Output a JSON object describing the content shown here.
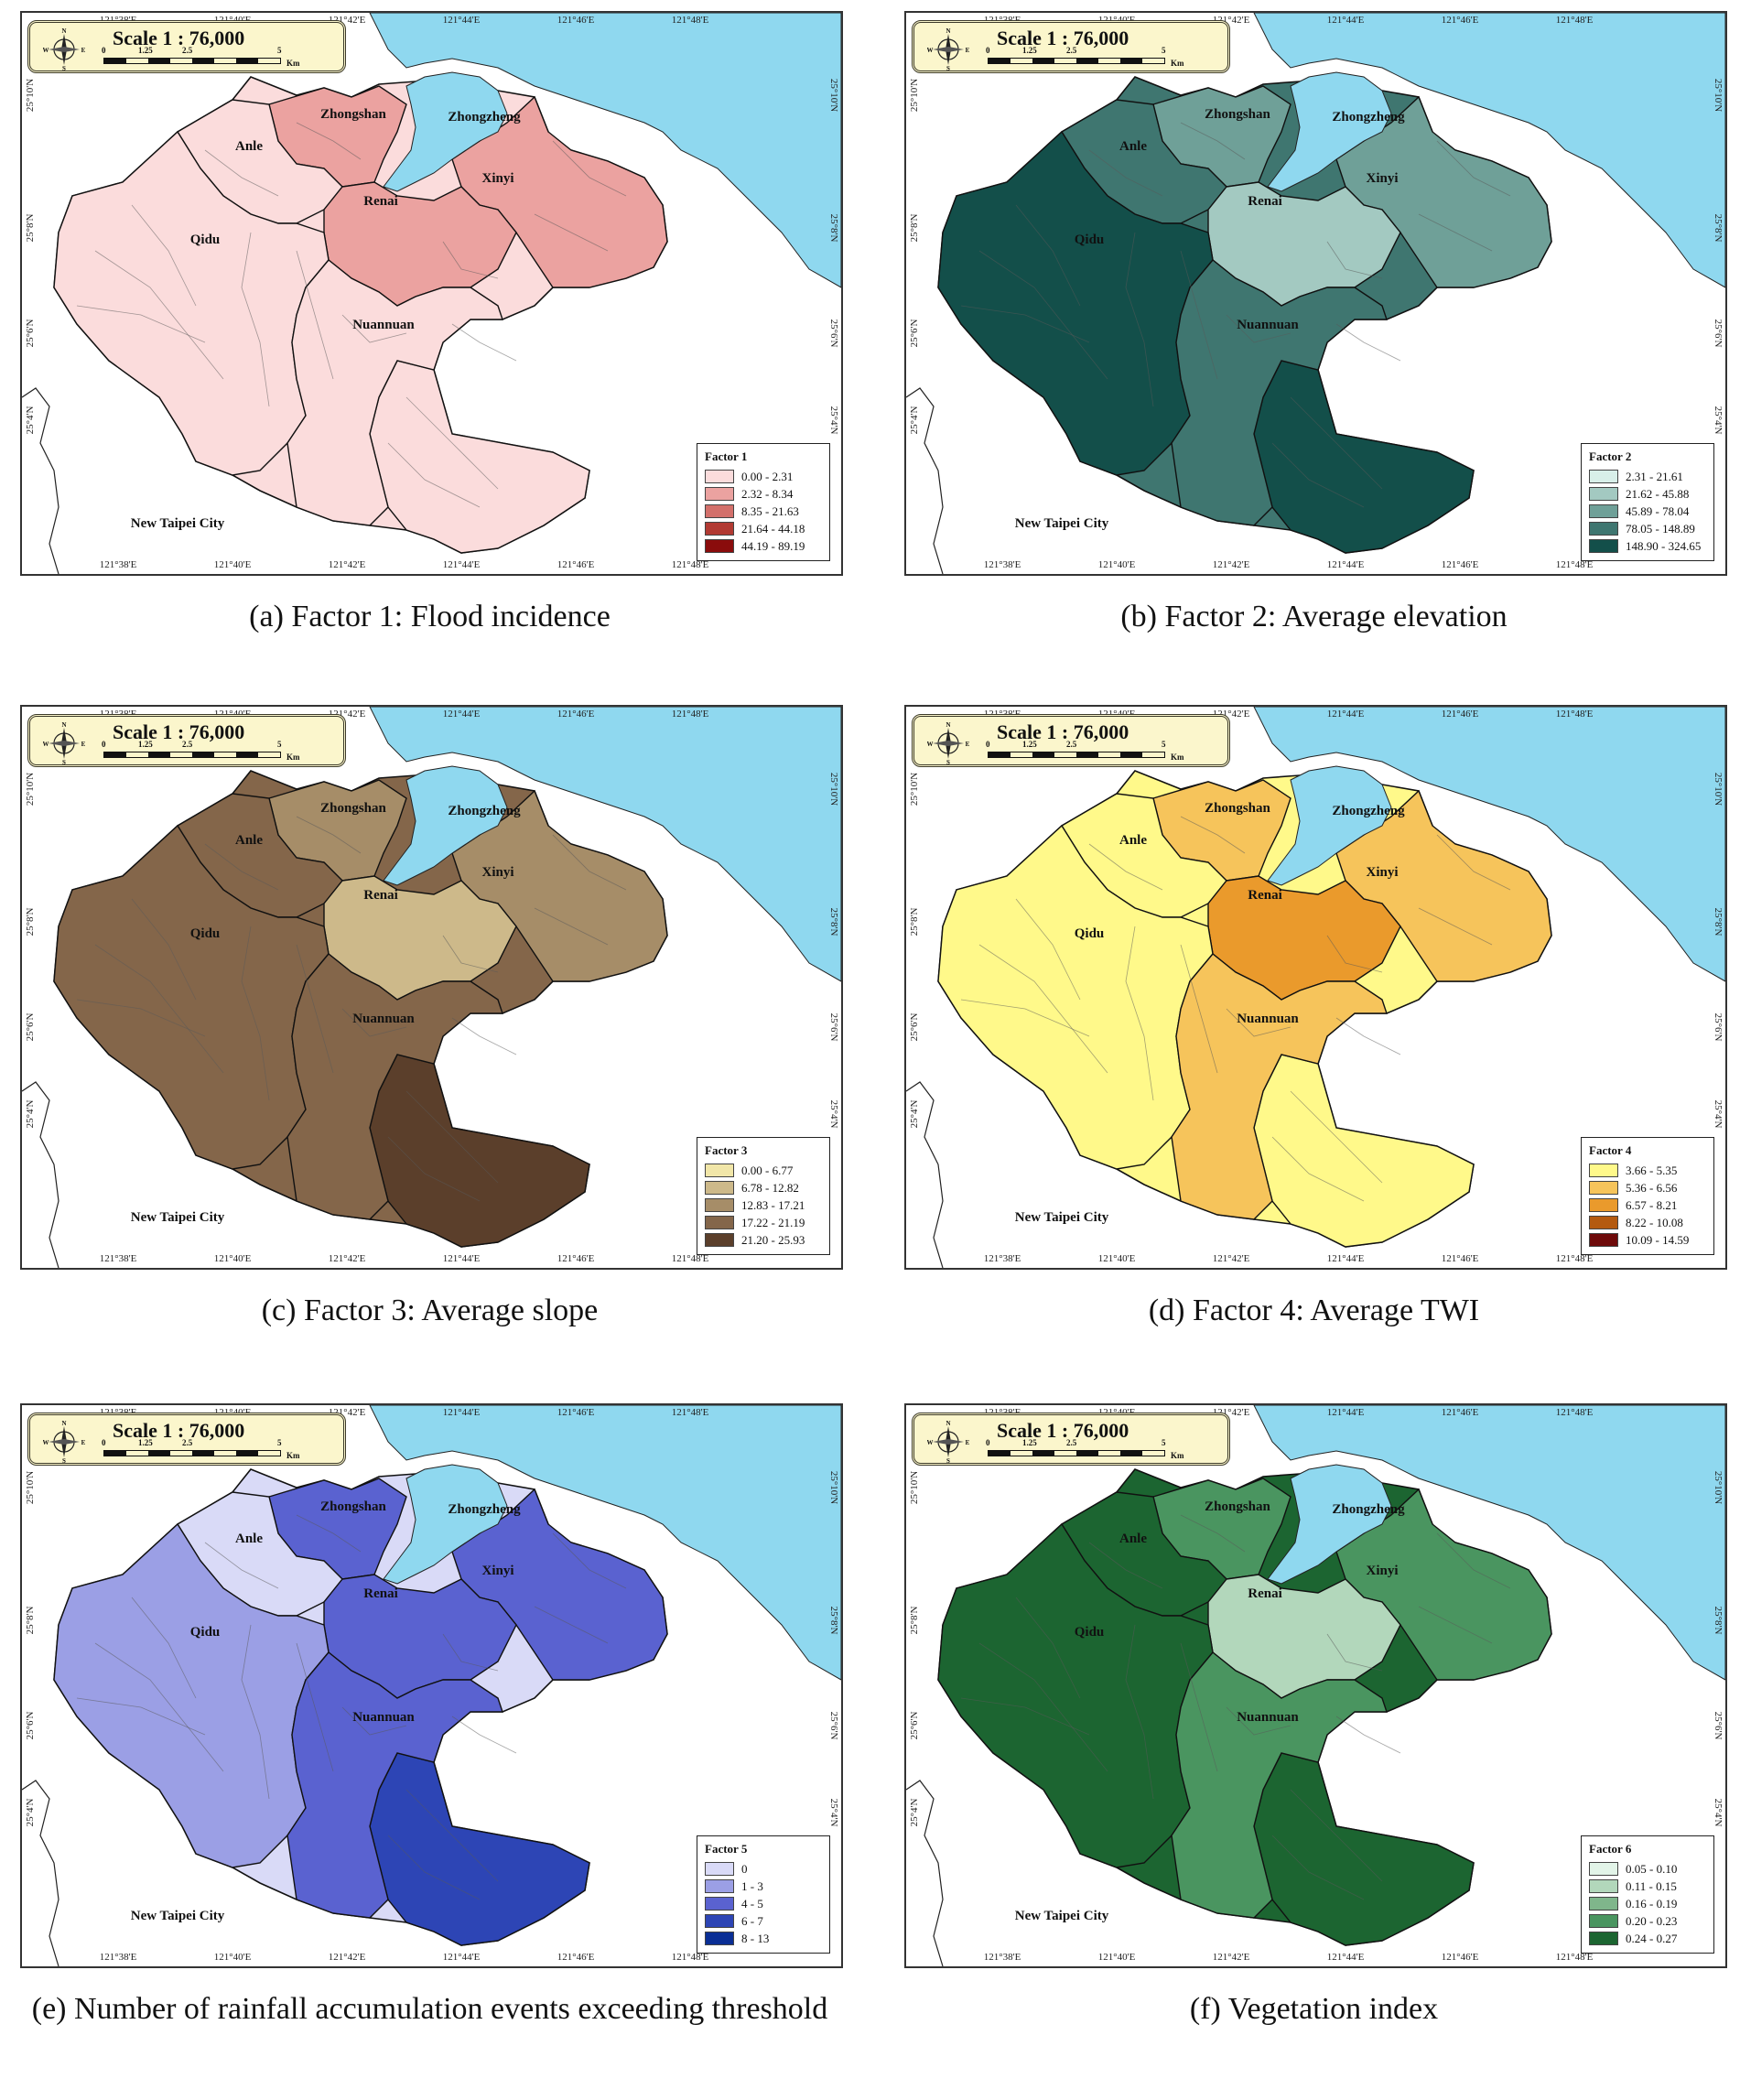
{
  "map_common": {
    "scale_text": "Scale 1 : 76,000",
    "scale_ticks": [
      "0",
      "1.25",
      "2.5",
      "5"
    ],
    "scale_unit": "Km",
    "compass": [
      "N",
      "S",
      "W",
      "E"
    ],
    "lon_labels": [
      "121°38'E",
      "121°40'E",
      "121°42'E",
      "121°44'E",
      "121°46'E",
      "121°48'E"
    ],
    "lat_labels": [
      "25°10'N",
      "25°8'N",
      "25°6'N",
      "25°4'N"
    ],
    "districts": [
      "Zhongshan",
      "Zhongzheng",
      "Anle",
      "Renai",
      "Xinyi",
      "Qidu",
      "Nuannuan"
    ],
    "neighbor_city": "New Taipei City",
    "sea_color": "#8fd8ef"
  },
  "panels": [
    {
      "caption": "(a) Factor 1: Flood incidence",
      "legend_title": "Factor 1",
      "classes": [
        {
          "label": "0.00 - 2.31",
          "color": "#fbdcdc"
        },
        {
          "label": "2.32 - 8.34",
          "color": "#eba2a0"
        },
        {
          "label": "8.35 - 21.63",
          "color": "#d3706b"
        },
        {
          "label": "21.64 - 44.18",
          "color": "#b23a33"
        },
        {
          "label": "44.19 - 89.19",
          "color": "#8a0c0c"
        }
      ]
    },
    {
      "caption": "(b) Factor 2: Average elevation",
      "legend_title": "Factor 2",
      "classes": [
        {
          "label": "2.31 - 21.61",
          "color": "#d8efe9"
        },
        {
          "label": "21.62 - 45.88",
          "color": "#a3c9c1"
        },
        {
          "label": "45.89 - 78.04",
          "color": "#6fa098"
        },
        {
          "label": "78.05 - 148.89",
          "color": "#3f7670"
        },
        {
          "label": "148.90 - 324.65",
          "color": "#134f4a"
        }
      ]
    },
    {
      "caption": "(c) Factor 3: Average slope",
      "legend_title": "Factor 3",
      "classes": [
        {
          "label": "0.00 - 6.77",
          "color": "#f1e6a8"
        },
        {
          "label": "6.78 - 12.82",
          "color": "#cdb98a"
        },
        {
          "label": "12.83 - 17.21",
          "color": "#a68d68"
        },
        {
          "label": "17.22 - 21.19",
          "color": "#84664a"
        },
        {
          "label": "21.20 - 25.93",
          "color": "#5b3f2b"
        }
      ]
    },
    {
      "caption": "(d) Factor 4: Average TWI",
      "legend_title": "Factor 4",
      "classes": [
        {
          "label": "3.66 - 5.35",
          "color": "#fff98a"
        },
        {
          "label": "5.36 - 6.56",
          "color": "#f6c45b"
        },
        {
          "label": "6.57 - 8.21",
          "color": "#ea9a2c"
        },
        {
          "label": "8.22 - 10.08",
          "color": "#b45a10"
        },
        {
          "label": "10.09 - 14.59",
          "color": "#6e0a0a"
        }
      ]
    },
    {
      "caption": "(e) Number of rainfall accumulation events exceeding threshold",
      "legend_title": "Factor 5",
      "classes": [
        {
          "label": "0",
          "color": "#d9daf7"
        },
        {
          "label": "1 - 3",
          "color": "#9b9fe5"
        },
        {
          "label": "4 - 5",
          "color": "#5a62d0"
        },
        {
          "label": "6 - 7",
          "color": "#2d45b5"
        },
        {
          "label": "8 - 13",
          "color": "#0a2e95"
        }
      ]
    },
    {
      "caption": "(f) Vegetation index",
      "legend_title": "Factor 6",
      "classes": [
        {
          "label": "0.05 - 0.10",
          "color": "#e2f4e8"
        },
        {
          "label": "0.11 - 0.15",
          "color": "#b2d7bb"
        },
        {
          "label": "0.16 - 0.19",
          "color": "#7fb68b"
        },
        {
          "label": "0.20 - 0.23",
          "color": "#4a9560"
        },
        {
          "label": "0.24 - 0.27",
          "color": "#1c6531"
        }
      ]
    }
  ]
}
